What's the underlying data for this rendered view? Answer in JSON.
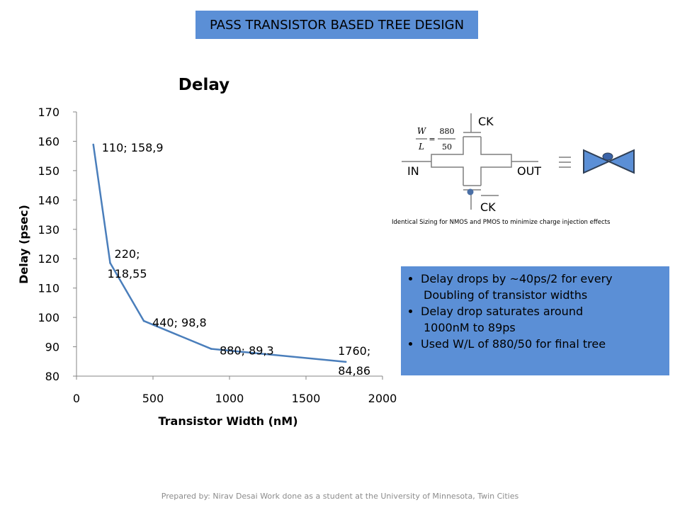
{
  "header": {
    "title": "PASS TRANSISTOR BASED TREE DESIGN"
  },
  "chart_data": {
    "type": "line",
    "title": "Delay",
    "xlabel": "Transistor Width (nM)",
    "ylabel": "Delay (psec)",
    "xlim": [
      0,
      2000
    ],
    "ylim": [
      80,
      170
    ],
    "xticks": [
      0,
      500,
      1000,
      1500,
      2000
    ],
    "yticks": [
      80,
      90,
      100,
      110,
      120,
      130,
      140,
      150,
      160,
      170
    ],
    "grid": false,
    "legend": "none",
    "series": [
      {
        "x": [
          110,
          220,
          440,
          880,
          1760
        ],
        "y": [
          158.9,
          118.55,
          98.8,
          89.3,
          84.86
        ],
        "color": "#4a7ebb",
        "labels": [
          "110; 158,9",
          "220; 118,55",
          "440; 98,8",
          "880; 89,3",
          "1760; 84,86"
        ]
      }
    ]
  },
  "schematic": {
    "ck_label": "CK",
    "ckb_label": "CK",
    "in_label": "IN",
    "out_label": "OUT",
    "ratio_num": "W",
    "ratio_den": "L",
    "value_num": "880",
    "value_den": "50",
    "note": "Identical Sizing for NMOS and PMOS to minimize charge injection effects"
  },
  "bullets": {
    "b1_line1": "Delay drops by ~40ps/2 for every",
    "b1_line2": "Doubling of transistor widths",
    "b2_line1": "Delay drop saturates around",
    "b2_line2": "1000nM to 89ps",
    "b3": "Used W/L of 880/50 for final tree"
  },
  "footer": {
    "text": "Prepared by: Nirav Desai Work done as a student at the University of Minnesota, Twin Cities"
  },
  "colors": {
    "accent": "#5b8fd6",
    "line": "#4a7ebb"
  }
}
